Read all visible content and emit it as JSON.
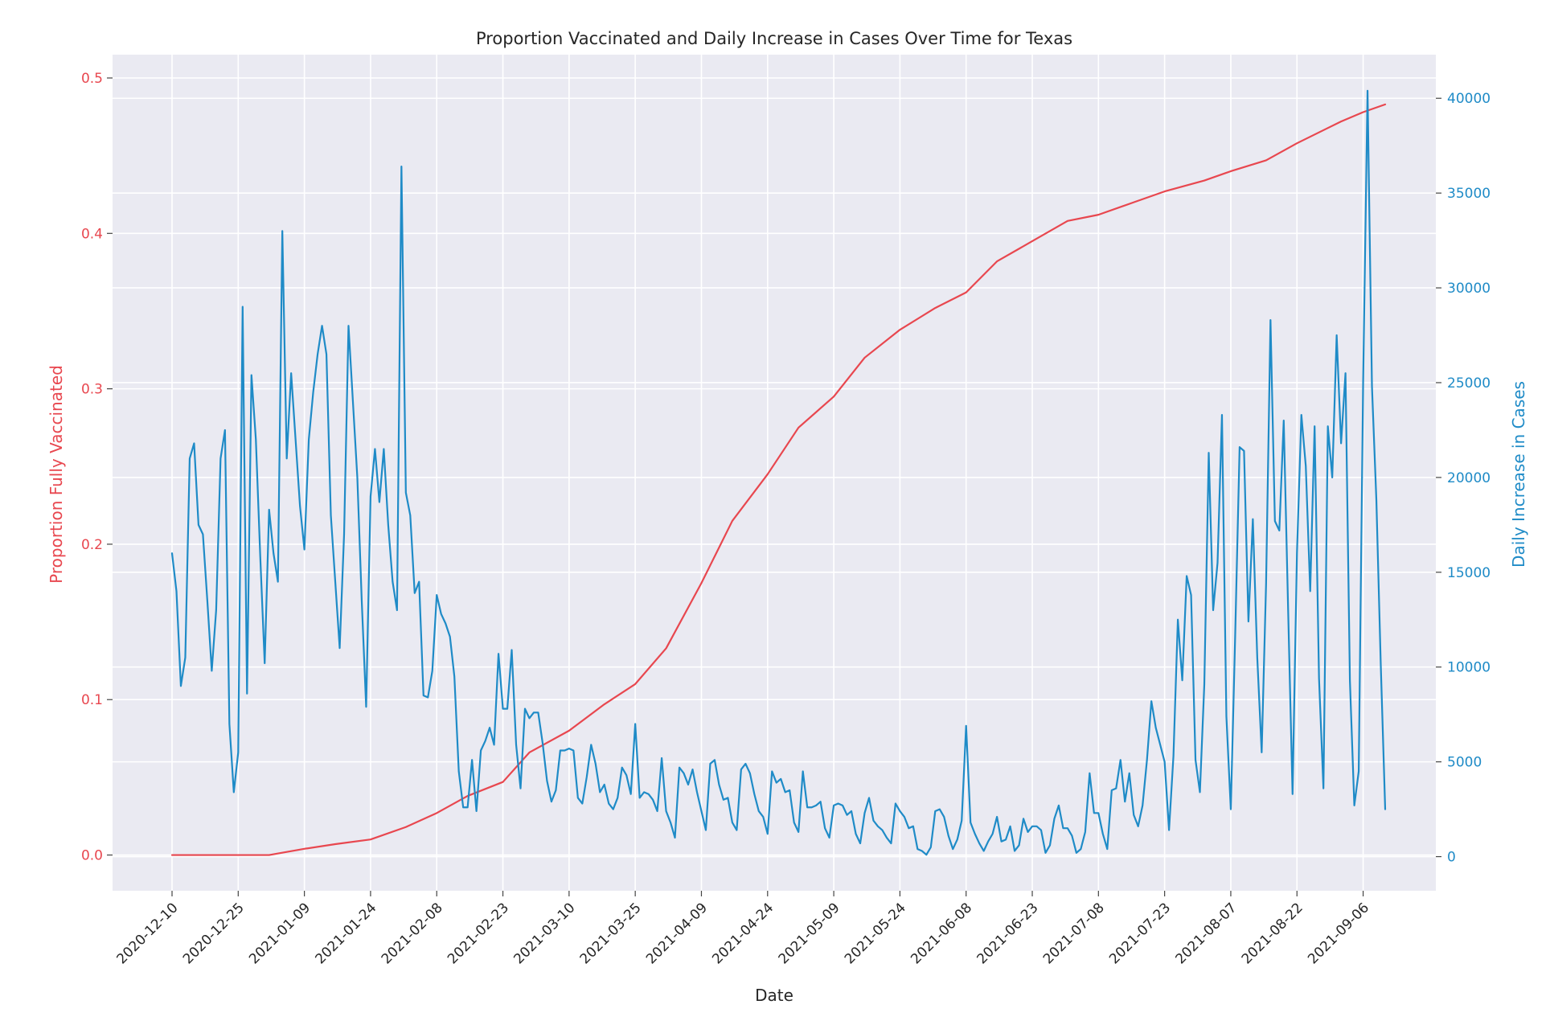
{
  "chart_data": {
    "type": "line",
    "title": "Proportion Vaccinated and Daily Increase in Cases Over Time for Texas",
    "xlabel": "Date",
    "ylabel_left": "Proportion Fully Vaccinated",
    "ylabel_right": "Daily Increase in Cases",
    "x_range": [
      "2020-12-10",
      "2021-09-11"
    ],
    "ylim_left": [
      -0.023,
      0.515
    ],
    "ylim_right": [
      -1800,
      42300
    ],
    "y_ticks_left": [
      0.0,
      0.1,
      0.2,
      0.3,
      0.4,
      0.5
    ],
    "y_tick_labels_left": [
      "0.0",
      "0.1",
      "0.2",
      "0.3",
      "0.4",
      "0.5"
    ],
    "y_ticks_right": [
      0,
      5000,
      10000,
      15000,
      20000,
      25000,
      30000,
      35000,
      40000
    ],
    "y_tick_labels_right": [
      "0",
      "5000",
      "10000",
      "15000",
      "20000",
      "25000",
      "30000",
      "35000",
      "40000"
    ],
    "x_ticks": [
      "2020-12-10",
      "2020-12-25",
      "2021-01-09",
      "2021-01-24",
      "2021-02-08",
      "2021-02-23",
      "2021-03-10",
      "2021-03-25",
      "2021-04-09",
      "2021-04-24",
      "2021-05-09",
      "2021-05-24",
      "2021-06-08",
      "2021-06-23",
      "2021-07-08",
      "2021-07-23",
      "2021-08-07",
      "2021-08-22",
      "2021-09-06"
    ],
    "grid": true,
    "colors": {
      "left_axis": "#e8474f",
      "right_axis": "#1f8bc7",
      "background": "#eaeaf2",
      "grid": "#ffffff"
    },
    "series": [
      {
        "name": "Proportion Fully Vaccinated",
        "axis": "left",
        "color": "#e8474f",
        "x": [
          "2020-12-10",
          "2020-12-25",
          "2021-01-01",
          "2021-01-09",
          "2021-01-16",
          "2021-01-24",
          "2021-02-01",
          "2021-02-08",
          "2021-02-15",
          "2021-02-23",
          "2021-03-01",
          "2021-03-10",
          "2021-03-18",
          "2021-03-25",
          "2021-04-01",
          "2021-04-09",
          "2021-04-16",
          "2021-04-24",
          "2021-05-01",
          "2021-05-09",
          "2021-05-16",
          "2021-05-24",
          "2021-06-01",
          "2021-06-08",
          "2021-06-15",
          "2021-06-23",
          "2021-07-01",
          "2021-07-08",
          "2021-07-16",
          "2021-07-23",
          "2021-08-01",
          "2021-08-07",
          "2021-08-15",
          "2021-08-22",
          "2021-09-01",
          "2021-09-06",
          "2021-09-11"
        ],
        "values": [
          0.0,
          0.0,
          0.0,
          0.004,
          0.007,
          0.01,
          0.018,
          0.027,
          0.038,
          0.047,
          0.066,
          0.08,
          0.097,
          0.11,
          0.133,
          0.175,
          0.215,
          0.245,
          0.275,
          0.295,
          0.32,
          0.338,
          0.352,
          0.362,
          0.382,
          0.395,
          0.408,
          0.412,
          0.42,
          0.427,
          0.434,
          0.44,
          0.447,
          0.458,
          0.472,
          0.478,
          0.483
        ]
      },
      {
        "name": "Daily Increase in Cases",
        "axis": "right",
        "color": "#1f8bc7",
        "start_date": "2020-12-10",
        "step_days": 1,
        "values": [
          16000,
          14000,
          9000,
          10500,
          21000,
          21800,
          17500,
          17000,
          13500,
          9800,
          13000,
          21000,
          22500,
          7000,
          3400,
          5500,
          29000,
          8600,
          25400,
          22000,
          15800,
          10200,
          18300,
          16000,
          14500,
          33000,
          21000,
          25500,
          22000,
          18500,
          16200,
          22000,
          24500,
          26500,
          28000,
          26500,
          18000,
          14500,
          11000,
          17000,
          28000,
          24000,
          20000,
          13500,
          7900,
          19000,
          21500,
          18700,
          21500,
          17500,
          14500,
          13000,
          36400,
          19200,
          18000,
          13900,
          14500,
          8500,
          8400,
          9800,
          13800,
          12800,
          12300,
          11600,
          9500,
          4500,
          2600,
          2600,
          5100,
          2400,
          5600,
          6100,
          6800,
          5900,
          10700,
          7800,
          7800,
          10900,
          5900,
          3600,
          7800,
          7300,
          7600,
          7600,
          6000,
          4000,
          2900,
          3500,
          5600,
          5600,
          5700,
          5600,
          3100,
          2800,
          4200,
          5900,
          4900,
          3400,
          3800,
          2800,
          2500,
          3100,
          4700,
          4300,
          3300,
          7000,
          3100,
          3400,
          3300,
          3000,
          2400,
          5200,
          2400,
          1800,
          1000,
          4700,
          4400,
          3800,
          4600,
          3400,
          2400,
          1400,
          4900,
          5100,
          3800,
          3000,
          3100,
          1800,
          1400,
          4600,
          4900,
          4400,
          3300,
          2400,
          2100,
          1200,
          4500,
          3900,
          4100,
          3400,
          3500,
          1800,
          1300,
          4500,
          2600,
          2600,
          2700,
          2900,
          1500,
          1000,
          2700,
          2800,
          2700,
          2200,
          2400,
          1200,
          700,
          2300,
          3100,
          1900,
          1600,
          1400,
          1000,
          700,
          2800,
          2400,
          2100,
          1500,
          1600,
          400,
          300,
          100,
          500,
          2400,
          2500,
          2100,
          1100,
          400,
          900,
          1900,
          6900,
          1800,
          1200,
          700,
          300,
          800,
          1200,
          2100,
          800,
          900,
          1600,
          300,
          600,
          2000,
          1300,
          1600,
          1600,
          1400,
          200,
          600,
          2000,
          2700,
          1500,
          1500,
          1100,
          200,
          400,
          1300,
          4400,
          2300,
          2300,
          1200,
          400,
          3500,
          3600,
          5100,
          2900,
          4400,
          2200,
          1600,
          2700,
          5100,
          8200,
          6800,
          5900,
          5000,
          1400,
          5300,
          12500,
          9300,
          14800,
          13800,
          5100,
          3400,
          9100,
          21300,
          13000,
          15500,
          23300,
          7400,
          2500,
          11700,
          21600,
          21400,
          12400,
          17800,
          10500,
          5500,
          14400,
          28300,
          17700,
          17200,
          23000,
          13000,
          3300,
          16000,
          23300,
          20600,
          14000,
          22700,
          9400,
          3600,
          22700,
          20000,
          27500,
          21800,
          25500,
          9300,
          2700,
          4500,
          25000,
          40400,
          24800,
          18800,
          10100,
          2500
        ]
      }
    ]
  }
}
